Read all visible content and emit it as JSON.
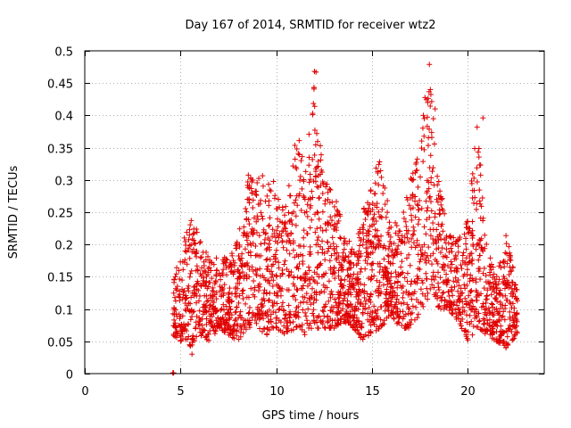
{
  "chart_data": {
    "type": "scatter",
    "title": "Day 167 of 2014, SRMTID for receiver wtz2",
    "xlabel": "GPS time / hours",
    "ylabel": "SRMTID / TECUs",
    "xlim": [
      0,
      24
    ],
    "ylim": [
      0,
      0.5
    ],
    "x_ticks": [
      {
        "value": 0,
        "label": "0"
      },
      {
        "value": 5,
        "label": "5"
      },
      {
        "value": 10,
        "label": "10"
      },
      {
        "value": 15,
        "label": "15"
      },
      {
        "value": 20,
        "label": "20"
      }
    ],
    "y_ticks": [
      {
        "value": 0,
        "label": "0"
      },
      {
        "value": 0.05,
        "label": "0.05"
      },
      {
        "value": 0.1,
        "label": "0.1"
      },
      {
        "value": 0.15,
        "label": "0.15"
      },
      {
        "value": 0.2,
        "label": "0.2"
      },
      {
        "value": 0.25,
        "label": "0.25"
      },
      {
        "value": 0.3,
        "label": "0.3"
      },
      {
        "value": 0.35,
        "label": "0.35"
      },
      {
        "value": 0.4,
        "label": "0.4"
      },
      {
        "value": 0.45,
        "label": "0.45"
      },
      {
        "value": 0.5,
        "label": "0.5"
      }
    ],
    "grid": true,
    "marker": "+",
    "series": [
      {
        "name": "SRMTID",
        "color": "#e00000",
        "x_range": [
          4.6,
          22.6
        ],
        "zero_points_x": [
          4.6,
          4.62,
          4.64
        ],
        "envelope": [
          {
            "x": 4.6,
            "low": 0.06,
            "high": 0.14
          },
          {
            "x": 5.0,
            "low": 0.05,
            "high": 0.19
          },
          {
            "x": 5.5,
            "low": 0.04,
            "high": 0.24
          },
          {
            "x": 6.0,
            "low": 0.06,
            "high": 0.22
          },
          {
            "x": 6.5,
            "low": 0.05,
            "high": 0.18
          },
          {
            "x": 7.0,
            "low": 0.07,
            "high": 0.18
          },
          {
            "x": 7.5,
            "low": 0.06,
            "high": 0.18
          },
          {
            "x": 8.0,
            "low": 0.05,
            "high": 0.22
          },
          {
            "x": 8.5,
            "low": 0.07,
            "high": 0.31
          },
          {
            "x": 9.0,
            "low": 0.07,
            "high": 0.3
          },
          {
            "x": 9.5,
            "low": 0.06,
            "high": 0.32
          },
          {
            "x": 10.0,
            "low": 0.07,
            "high": 0.29
          },
          {
            "x": 10.5,
            "low": 0.06,
            "high": 0.26
          },
          {
            "x": 11.0,
            "low": 0.07,
            "high": 0.36
          },
          {
            "x": 11.5,
            "low": 0.06,
            "high": 0.33
          },
          {
            "x": 12.0,
            "low": 0.07,
            "high": 0.47
          },
          {
            "x": 12.5,
            "low": 0.07,
            "high": 0.3
          },
          {
            "x": 13.0,
            "low": 0.07,
            "high": 0.3
          },
          {
            "x": 13.5,
            "low": 0.08,
            "high": 0.22
          },
          {
            "x": 14.0,
            "low": 0.07,
            "high": 0.2
          },
          {
            "x": 14.5,
            "low": 0.05,
            "high": 0.25
          },
          {
            "x": 15.0,
            "low": 0.06,
            "high": 0.31
          },
          {
            "x": 15.5,
            "low": 0.07,
            "high": 0.33
          },
          {
            "x": 16.0,
            "low": 0.09,
            "high": 0.24
          },
          {
            "x": 16.5,
            "low": 0.07,
            "high": 0.23
          },
          {
            "x": 17.0,
            "low": 0.07,
            "high": 0.3
          },
          {
            "x": 17.5,
            "low": 0.09,
            "high": 0.37
          },
          {
            "x": 18.0,
            "low": 0.12,
            "high": 0.48
          },
          {
            "x": 18.5,
            "low": 0.1,
            "high": 0.3
          },
          {
            "x": 19.0,
            "low": 0.1,
            "high": 0.22
          },
          {
            "x": 19.5,
            "low": 0.08,
            "high": 0.21
          },
          {
            "x": 20.0,
            "low": 0.05,
            "high": 0.24
          },
          {
            "x": 20.5,
            "low": 0.07,
            "high": 0.39
          },
          {
            "x": 21.0,
            "low": 0.06,
            "high": 0.2
          },
          {
            "x": 21.5,
            "low": 0.05,
            "high": 0.15
          },
          {
            "x": 22.0,
            "low": 0.04,
            "high": 0.22
          },
          {
            "x": 22.6,
            "low": 0.06,
            "high": 0.13
          }
        ],
        "outliers": [
          {
            "x": 12.0,
            "y": 0.468
          },
          {
            "x": 12.08,
            "y": 0.467
          },
          {
            "x": 11.98,
            "y": 0.443
          },
          {
            "x": 12.02,
            "y": 0.377
          },
          {
            "x": 18.0,
            "y": 0.479
          },
          {
            "x": 18.05,
            "y": 0.44
          },
          {
            "x": 18.3,
            "y": 0.41
          },
          {
            "x": 20.8,
            "y": 0.396
          },
          {
            "x": 11.2,
            "y": 0.361
          },
          {
            "x": 15.4,
            "y": 0.328
          },
          {
            "x": 5.6,
            "y": 0.03
          },
          {
            "x": 22.0,
            "y": 0.04
          }
        ]
      }
    ]
  }
}
